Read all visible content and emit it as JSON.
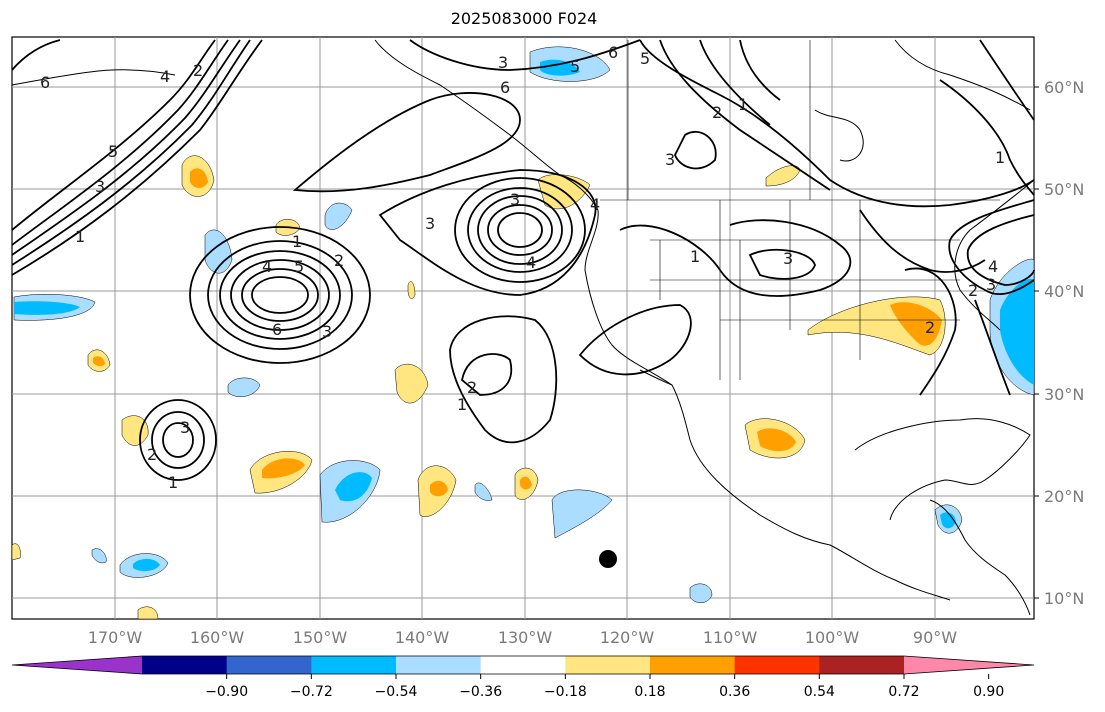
{
  "title": "2025083000 F024",
  "map": {
    "lat_labels": [
      "60°N",
      "50°N",
      "40°N",
      "30°N",
      "20°N",
      "10°N"
    ],
    "lon_labels": [
      "170°W",
      "160°W",
      "150°W",
      "140°W",
      "130°W",
      "120°W",
      "110°W",
      "100°W",
      "90°W"
    ],
    "contour_labels": [
      "6",
      "5",
      "4",
      "3",
      "2",
      "1",
      "6",
      "5",
      "4",
      "3",
      "2",
      "1",
      "3",
      "2",
      "1",
      "3",
      "6",
      "5",
      "4",
      "3",
      "2",
      "1",
      "3",
      "6",
      "5",
      "4",
      "3",
      "2",
      "1",
      "1",
      "3",
      "2",
      "1",
      "4",
      "3",
      "2"
    ]
  },
  "colorbar": {
    "ticks": [
      "−0.90",
      "−0.72",
      "−0.54",
      "−0.36",
      "−0.18",
      "0.18",
      "0.36",
      "0.54",
      "0.72",
      "0.90"
    ],
    "colors": [
      "#9933cc",
      "#000088",
      "#3366cc",
      "#00bbff",
      "#aaddff",
      "#ffffff",
      "#ffe680",
      "#ffa000",
      "#ff3300",
      "#aa2222",
      "#ff88aa"
    ]
  }
}
